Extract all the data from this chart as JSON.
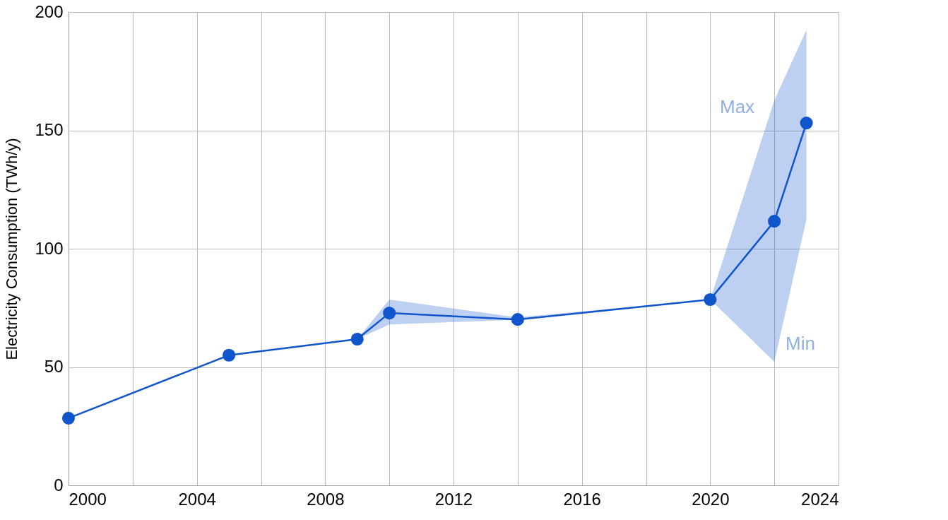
{
  "chart_data": {
    "type": "line",
    "ylabel": "Electricity Consumption (TWh/y)",
    "xlim": [
      2000,
      2024
    ],
    "ylim": [
      0,
      200
    ],
    "xticks": [
      2000,
      {
        "value": 2002,
        "label": null
      },
      2004,
      {
        "value": 2006,
        "label": null
      },
      2008,
      {
        "value": 2010,
        "label": null
      },
      2012,
      {
        "value": 2014,
        "label": null
      },
      2016,
      {
        "value": 2018,
        "label": null
      },
      2020,
      {
        "value": 2022,
        "label": null
      },
      2024
    ],
    "yticks": [
      0,
      50,
      100,
      150,
      200
    ],
    "grid": true,
    "marker": "circle",
    "line_style": "solid",
    "series": [
      {
        "color": "#1155cc",
        "x": [
          2000,
          2005,
          2009,
          2010,
          2014,
          2020,
          2022,
          2023
        ],
        "values": [
          28.4,
          55,
          61.8,
          72.8,
          70.1,
          78.5,
          111.6,
          153.1
        ],
        "lower": [
          28.4,
          55,
          61.8,
          68,
          70,
          78.5,
          52.2,
          112.5
        ],
        "upper": [
          28.4,
          55,
          61.8,
          78.5,
          71,
          78.5,
          162.7,
          192.5
        ]
      }
    ],
    "annotations": [
      "Max",
      "Min"
    ]
  }
}
